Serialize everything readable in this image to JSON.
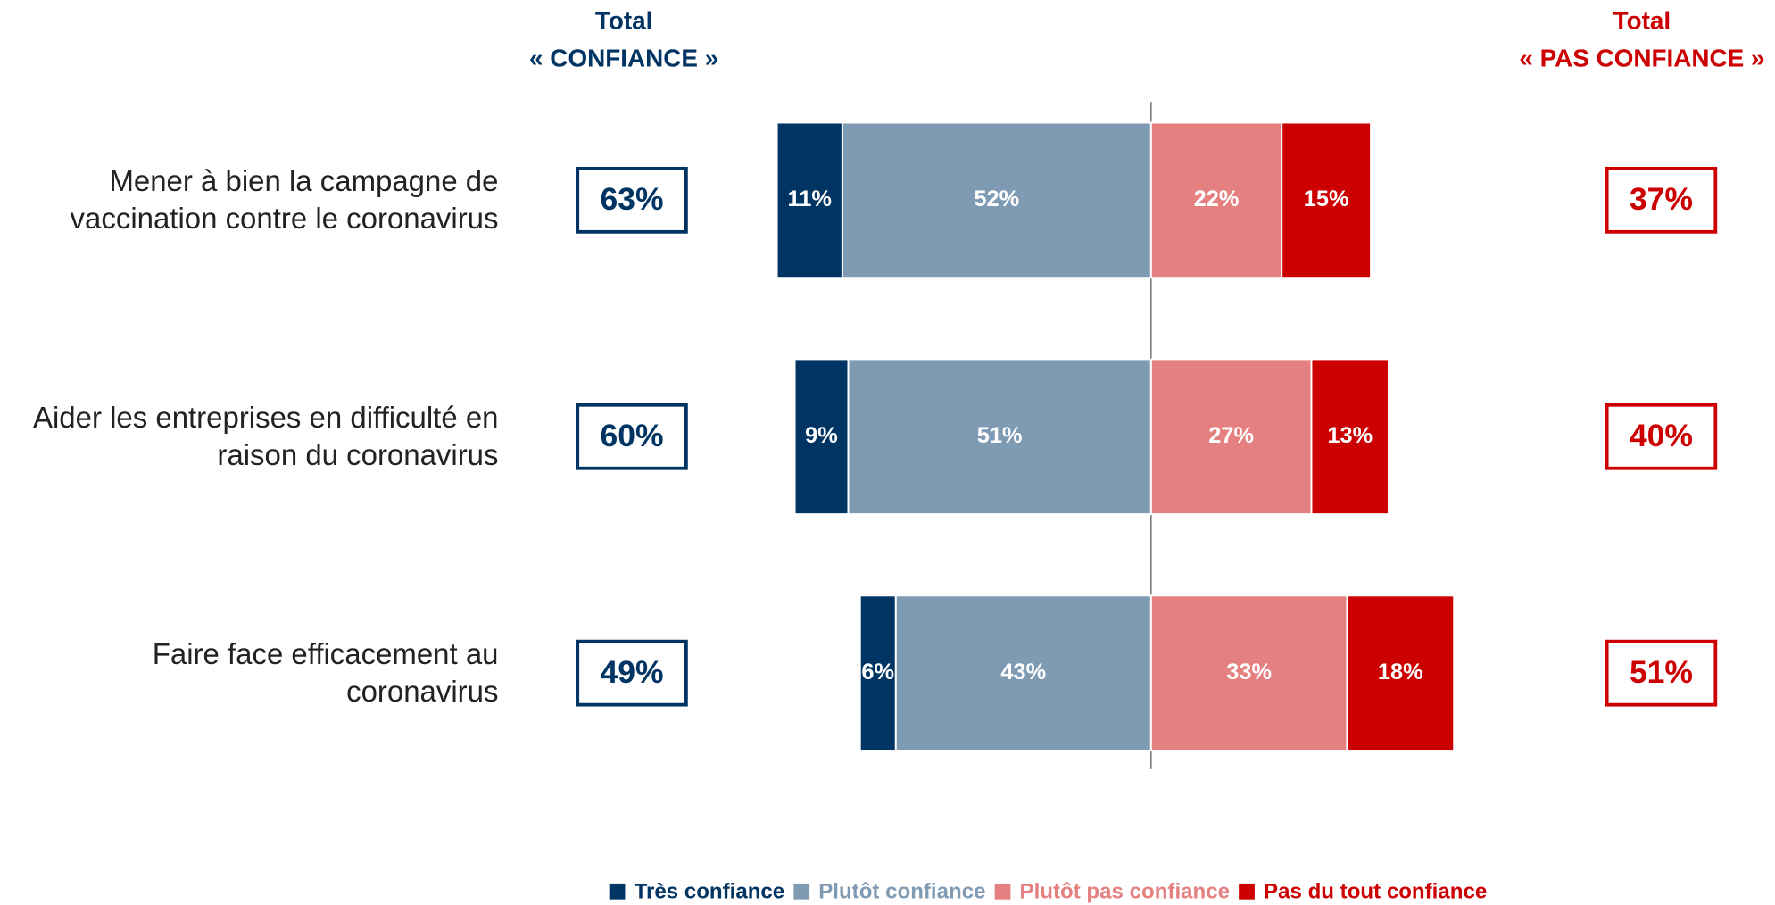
{
  "chart_data": {
    "type": "diverging-bar",
    "categories": [
      "Mener à bien la campagne de vaccination contre le coronavirus",
      "Aider les entreprises en difficulté en raison du coronavirus",
      "Faire face efficacement au coronavirus"
    ],
    "series": [
      {
        "name": "Très confiance",
        "color": "#003462",
        "side": "left",
        "values": [
          11,
          9,
          6
        ],
        "value_labels": [
          "11%",
          "9%",
          "6%"
        ]
      },
      {
        "name": "Plutôt confiance",
        "color": "#7f9ab3",
        "side": "left",
        "values": [
          52,
          51,
          43
        ],
        "value_labels": [
          "52%",
          "51%",
          "43%"
        ]
      },
      {
        "name": "Plutôt pas confiance",
        "color": "#e58080",
        "side": "right",
        "values": [
          22,
          27,
          33
        ],
        "value_labels": [
          "22%",
          "27%",
          "33%"
        ]
      },
      {
        "name": "Pas du tout confiance",
        "color": "#cc0000",
        "side": "right",
        "values": [
          15,
          13,
          18
        ],
        "value_labels": [
          "15%",
          "13%",
          "18%"
        ]
      }
    ],
    "totals": [
      {
        "title": [
          "Total",
          "« CONFIANCE »"
        ],
        "color": "#003462",
        "values": [
          63,
          60,
          49
        ],
        "value_labels": [
          "63%",
          "60%",
          "49%"
        ]
      },
      {
        "title": [
          "Total",
          "« PAS CONFIANCE »"
        ],
        "color": "#cc0000",
        "values": [
          37,
          40,
          51
        ],
        "value_labels": [
          "37%",
          "40%",
          "51%"
        ]
      }
    ],
    "legend": "bottom"
  }
}
